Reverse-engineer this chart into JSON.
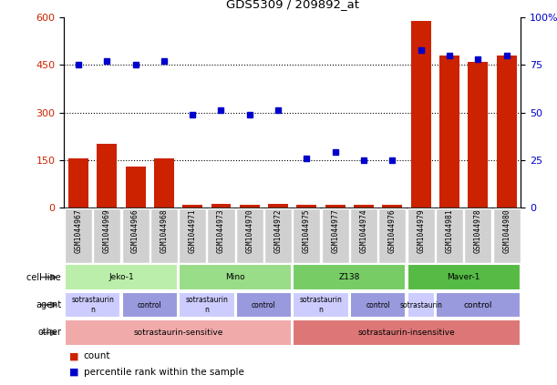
{
  "title": "GDS5309 / 209892_at",
  "samples": [
    "GSM1044967",
    "GSM1044969",
    "GSM1044966",
    "GSM1044968",
    "GSM1044971",
    "GSM1044973",
    "GSM1044970",
    "GSM1044972",
    "GSM1044975",
    "GSM1044977",
    "GSM1044974",
    "GSM1044976",
    "GSM1044979",
    "GSM1044981",
    "GSM1044978",
    "GSM1044980"
  ],
  "counts": [
    155,
    200,
    130,
    155,
    10,
    12,
    8,
    12,
    10,
    8,
    8,
    8,
    590,
    480,
    460,
    480
  ],
  "percentiles": [
    75,
    77,
    75,
    77,
    49,
    51,
    49,
    51,
    26,
    29,
    25,
    25,
    83,
    80,
    78,
    80
  ],
  "ylim_left": [
    0,
    600
  ],
  "ylim_right": [
    0,
    100
  ],
  "yticks_left": [
    0,
    150,
    300,
    450,
    600
  ],
  "yticks_right": [
    0,
    25,
    50,
    75,
    100
  ],
  "bar_color": "#cc2200",
  "dot_color": "#0000cc",
  "label_bg_color": "#d0d0d0",
  "cell_lines": [
    {
      "label": "Jeko-1",
      "start": 0,
      "end": 4,
      "color": "#bbeeaa"
    },
    {
      "label": "Mino",
      "start": 4,
      "end": 8,
      "color": "#99dd88"
    },
    {
      "label": "Z138",
      "start": 8,
      "end": 12,
      "color": "#77cc66"
    },
    {
      "label": "Maver-1",
      "start": 12,
      "end": 16,
      "color": "#55bb44"
    }
  ],
  "agents": [
    {
      "label": "sotrastaurin\nn",
      "start": 0,
      "end": 2,
      "color": "#ccccff"
    },
    {
      "label": "control",
      "start": 2,
      "end": 4,
      "color": "#9999dd"
    },
    {
      "label": "sotrastaurin\nn",
      "start": 4,
      "end": 6,
      "color": "#ccccff"
    },
    {
      "label": "control",
      "start": 6,
      "end": 8,
      "color": "#9999dd"
    },
    {
      "label": "sotrastaurin\nn",
      "start": 8,
      "end": 10,
      "color": "#ccccff"
    },
    {
      "label": "control",
      "start": 10,
      "end": 12,
      "color": "#9999dd"
    },
    {
      "label": "sotrastaurin",
      "start": 12,
      "end": 13,
      "color": "#ccccff"
    },
    {
      "label": "control",
      "start": 13,
      "end": 16,
      "color": "#9999dd"
    }
  ],
  "others": [
    {
      "label": "sotrastaurin-sensitive",
      "start": 0,
      "end": 8,
      "color": "#f0aaaa"
    },
    {
      "label": "sotrastaurin-insensitive",
      "start": 8,
      "end": 16,
      "color": "#dd7777"
    }
  ],
  "row_labels": [
    "cell line",
    "agent",
    "other"
  ],
  "legend_items": [
    {
      "color": "#cc2200",
      "label": "count"
    },
    {
      "color": "#0000cc",
      "label": "percentile rank within the sample"
    }
  ]
}
